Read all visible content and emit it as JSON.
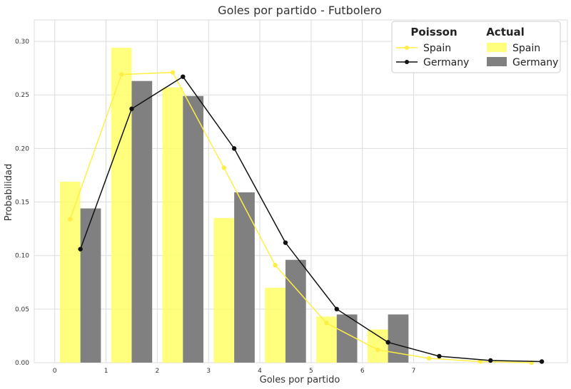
{
  "chart_data": {
    "type": "bar",
    "title": "Goles por partido - Futbolero",
    "xlabel": "Goles por partido",
    "ylabel": "Probabilidad",
    "x_ticks": [
      "0",
      "1",
      "2",
      "3",
      "4",
      "5",
      "6",
      "7"
    ],
    "y_ticks": [
      "0.00",
      "0.05",
      "0.10",
      "0.15",
      "0.20",
      "0.25",
      "0.30"
    ],
    "xlim": [
      -0.4,
      10.0
    ],
    "ylim": [
      0,
      0.32
    ],
    "grid": true,
    "bars": {
      "categories": [
        0,
        1,
        2,
        3,
        4,
        5,
        6
      ],
      "series": [
        {
          "name": "Spain",
          "color": "#ffff66",
          "values": [
            0.169,
            0.294,
            0.257,
            0.135,
            0.07,
            0.043,
            0.031
          ]
        },
        {
          "name": "Germany",
          "color": "#808080",
          "values": [
            0.144,
            0.263,
            0.249,
            0.159,
            0.096,
            0.045,
            0.045
          ]
        }
      ]
    },
    "lines": [
      {
        "name": "Spain",
        "color": "#ffee44",
        "x": [
          0.3,
          1.3,
          2.3,
          3.3,
          4.3,
          5.3,
          6.3,
          7.3,
          8.3,
          9.3
        ],
        "y": [
          0.134,
          0.269,
          0.271,
          0.182,
          0.091,
          0.037,
          0.012,
          0.004,
          0.001,
          0.0
        ]
      },
      {
        "name": "Germany",
        "color": "#111111",
        "x": [
          0.5,
          1.5,
          2.5,
          3.5,
          4.5,
          5.5,
          6.5,
          7.5,
          8.5,
          9.5
        ],
        "y": [
          0.106,
          0.237,
          0.267,
          0.2,
          0.112,
          0.05,
          0.019,
          0.006,
          0.002,
          0.001
        ]
      }
    ],
    "legend": {
      "placement": "top-right",
      "poisson_title": "Poisson",
      "actual_title": "Actual",
      "poisson_items": [
        "Spain",
        "Germany"
      ],
      "actual_items": [
        "Spain",
        "Germany"
      ]
    }
  }
}
